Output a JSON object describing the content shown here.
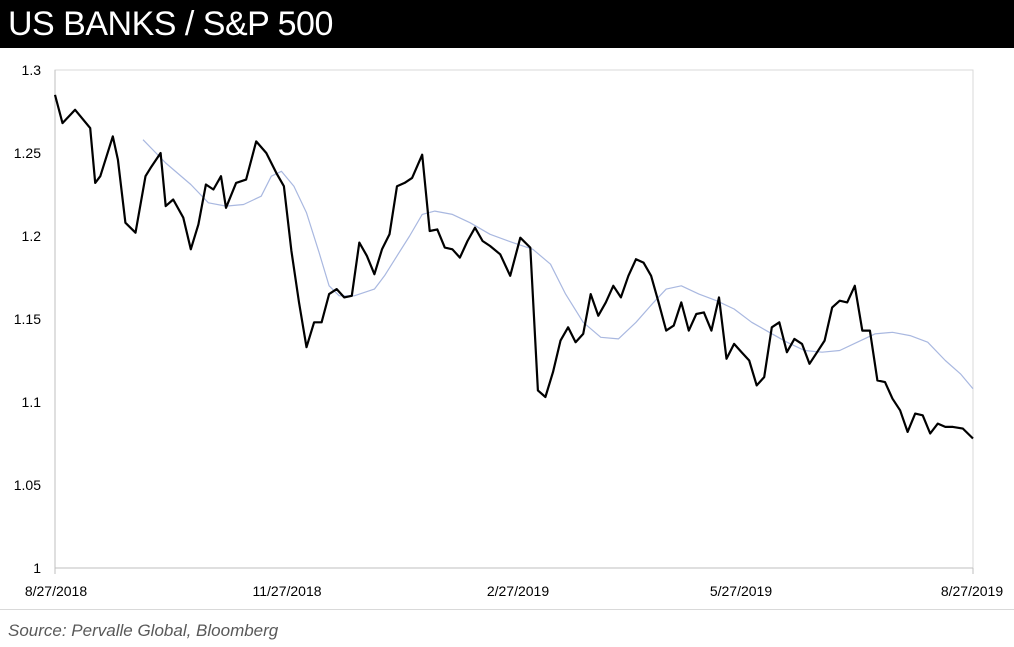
{
  "header": {
    "title": "US BANKS / S&P 500"
  },
  "footer": {
    "source": "Source: Pervalle Global, Bloomberg"
  },
  "colors": {
    "header_bg": "#000000",
    "ratio_line": "#000000",
    "moving_average_line": "#a9b8e0",
    "axis": "#d9d9d9"
  },
  "chart_data": {
    "type": "line",
    "title": "US BANKS / S&P 500",
    "xlabel": "",
    "ylabel": "",
    "ylim": [
      1,
      1.3
    ],
    "y_ticks": [
      "1.3",
      "1.25",
      "1.2",
      "1.15",
      "1.1",
      "1.05",
      "1"
    ],
    "x_ticks": [
      "8/27/2018",
      "11/27/2018",
      "2/27/2019",
      "5/27/2019",
      "8/27/2019"
    ],
    "x_range": [
      "2018-08-27",
      "2019-08-27"
    ],
    "grid": false,
    "legend": "none",
    "series": [
      {
        "style": "black-thick",
        "x": [
          "2018-08-27",
          "2018-08-30",
          "2018-09-04",
          "2018-09-10",
          "2018-09-12",
          "2018-09-14",
          "2018-09-19",
          "2018-09-21",
          "2018-09-24",
          "2018-09-28",
          "2018-10-02",
          "2018-10-04",
          "2018-10-08",
          "2018-10-10",
          "2018-10-13",
          "2018-10-17",
          "2018-10-20",
          "2018-10-23",
          "2018-10-26",
          "2018-10-29",
          "2018-11-01",
          "2018-11-03",
          "2018-11-07",
          "2018-11-11",
          "2018-11-15",
          "2018-11-19",
          "2018-11-23",
          "2018-11-26",
          "2018-11-29",
          "2018-12-02",
          "2018-12-05",
          "2018-12-08",
          "2018-12-11",
          "2018-12-14",
          "2018-12-17",
          "2018-12-20",
          "2018-12-23",
          "2018-12-26",
          "2018-12-29",
          "2019-01-01",
          "2019-01-04",
          "2019-01-07",
          "2019-01-10",
          "2019-01-13",
          "2019-01-16",
          "2019-01-20",
          "2019-01-23",
          "2019-01-26",
          "2019-01-29",
          "2019-02-01",
          "2019-02-04",
          "2019-02-07",
          "2019-02-10",
          "2019-02-13",
          "2019-02-16",
          "2019-02-20",
          "2019-02-24",
          "2019-02-28",
          "2019-03-04",
          "2019-03-07",
          "2019-03-10",
          "2019-03-13",
          "2019-03-16",
          "2019-03-19",
          "2019-03-22",
          "2019-03-25",
          "2019-03-28",
          "2019-03-31",
          "2019-04-03",
          "2019-04-06",
          "2019-04-09",
          "2019-04-12",
          "2019-04-15",
          "2019-04-18",
          "2019-04-21",
          "2019-04-24",
          "2019-04-27",
          "2019-04-30",
          "2019-05-03",
          "2019-05-06",
          "2019-05-09",
          "2019-05-12",
          "2019-05-15",
          "2019-05-18",
          "2019-05-21",
          "2019-05-24",
          "2019-05-27",
          "2019-05-30",
          "2019-06-02",
          "2019-06-05",
          "2019-06-08",
          "2019-06-11",
          "2019-06-14",
          "2019-06-17",
          "2019-06-20",
          "2019-06-23",
          "2019-06-26",
          "2019-06-29",
          "2019-07-02",
          "2019-07-05",
          "2019-07-08",
          "2019-07-11",
          "2019-07-14",
          "2019-07-17",
          "2019-07-20",
          "2019-07-23",
          "2019-07-26",
          "2019-07-29",
          "2019-08-01",
          "2019-08-04",
          "2019-08-07",
          "2019-08-10",
          "2019-08-13",
          "2019-08-16",
          "2019-08-19",
          "2019-08-23",
          "2019-08-27"
        ],
        "values": [
          1.285,
          1.268,
          1.276,
          1.265,
          1.232,
          1.236,
          1.26,
          1.246,
          1.208,
          1.202,
          1.236,
          1.241,
          1.25,
          1.218,
          1.222,
          1.211,
          1.192,
          1.207,
          1.231,
          1.228,
          1.236,
          1.217,
          1.232,
          1.234,
          1.257,
          1.25,
          1.238,
          1.23,
          1.191,
          1.16,
          1.133,
          1.148,
          1.148,
          1.165,
          1.168,
          1.163,
          1.164,
          1.196,
          1.188,
          1.177,
          1.192,
          1.201,
          1.23,
          1.232,
          1.235,
          1.249,
          1.203,
          1.204,
          1.193,
          1.192,
          1.187,
          1.197,
          1.205,
          1.197,
          1.194,
          1.189,
          1.176,
          1.199,
          1.193,
          1.107,
          1.103,
          1.118,
          1.137,
          1.145,
          1.136,
          1.141,
          1.165,
          1.152,
          1.16,
          1.17,
          1.163,
          1.176,
          1.186,
          1.184,
          1.176,
          1.16,
          1.143,
          1.146,
          1.16,
          1.143,
          1.153,
          1.154,
          1.143,
          1.163,
          1.126,
          1.135,
          1.13,
          1.125,
          1.11,
          1.115,
          1.145,
          1.148,
          1.13,
          1.138,
          1.135,
          1.123,
          1.13,
          1.137,
          1.157,
          1.161,
          1.16,
          1.17,
          1.143,
          1.143,
          1.113,
          1.112,
          1.102,
          1.095,
          1.082,
          1.093,
          1.092,
          1.081,
          1.087,
          1.085,
          1.085,
          1.084,
          1.078
        ]
      },
      {
        "style": "light-blue-thin",
        "x": [
          "2018-10-01",
          "2018-10-10",
          "2018-10-20",
          "2018-10-27",
          "2018-11-03",
          "2018-11-10",
          "2018-11-17",
          "2018-11-21",
          "2018-11-25",
          "2018-11-30",
          "2018-12-05",
          "2018-12-10",
          "2018-12-14",
          "2018-12-18",
          "2018-12-24",
          "2019-01-01",
          "2019-01-05",
          "2019-01-10",
          "2019-01-15",
          "2019-01-20",
          "2019-01-25",
          "2019-02-01",
          "2019-02-08",
          "2019-02-16",
          "2019-02-25",
          "2019-03-05",
          "2019-03-12",
          "2019-03-18",
          "2019-03-25",
          "2019-04-01",
          "2019-04-08",
          "2019-04-15",
          "2019-04-22",
          "2019-04-27",
          "2019-05-03",
          "2019-05-10",
          "2019-05-17",
          "2019-05-24",
          "2019-05-31",
          "2019-06-07",
          "2019-06-14",
          "2019-06-21",
          "2019-06-28",
          "2019-07-05",
          "2019-07-12",
          "2019-07-19",
          "2019-07-26",
          "2019-08-02",
          "2019-08-09",
          "2019-08-16",
          "2019-08-22",
          "2019-08-27"
        ],
        "values": [
          1.258,
          1.244,
          1.231,
          1.22,
          1.218,
          1.219,
          1.224,
          1.236,
          1.239,
          1.23,
          1.214,
          1.19,
          1.17,
          1.164,
          1.164,
          1.168,
          1.176,
          1.188,
          1.2,
          1.213,
          1.215,
          1.213,
          1.208,
          1.201,
          1.196,
          1.192,
          1.183,
          1.165,
          1.148,
          1.139,
          1.138,
          1.148,
          1.16,
          1.168,
          1.17,
          1.165,
          1.161,
          1.156,
          1.148,
          1.142,
          1.136,
          1.131,
          1.13,
          1.131,
          1.136,
          1.141,
          1.142,
          1.14,
          1.136,
          1.125,
          1.117,
          1.108
        ]
      }
    ]
  }
}
